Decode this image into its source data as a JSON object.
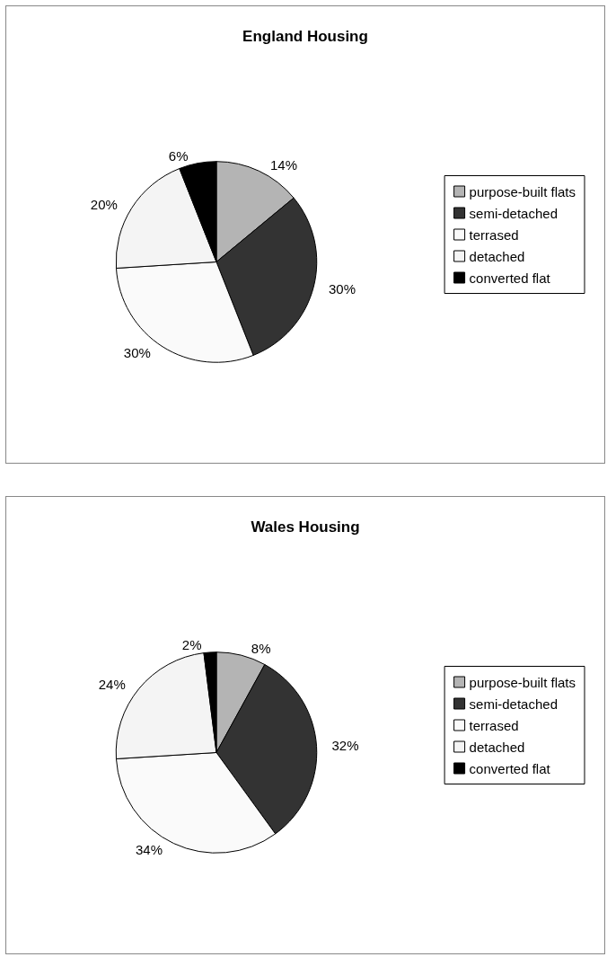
{
  "chart_data": [
    {
      "type": "pie",
      "title": "England Housing",
      "categories": [
        "purpose-built flats",
        "semi-detached",
        "terrased",
        "detached",
        "converted flat"
      ],
      "values": [
        14,
        30,
        30,
        20,
        6
      ],
      "value_labels": [
        "14%",
        "30%",
        "30%",
        "20%",
        "6%"
      ],
      "colors": [
        "#b4b4b4",
        "#333333",
        "#fafafa",
        "#f4f4f4",
        "#000000"
      ],
      "legend": "right"
    },
    {
      "type": "pie",
      "title": "Wales Housing",
      "categories": [
        "purpose-built flats",
        "semi-detached",
        "terrased",
        "detached",
        "converted flat"
      ],
      "values": [
        8,
        32,
        34,
        24,
        2
      ],
      "value_labels": [
        "8%",
        "32%",
        "34%",
        "24%",
        "2%"
      ],
      "colors": [
        "#b4b4b4",
        "#333333",
        "#fafafa",
        "#f4f4f4",
        "#000000"
      ],
      "legend": "right"
    }
  ]
}
